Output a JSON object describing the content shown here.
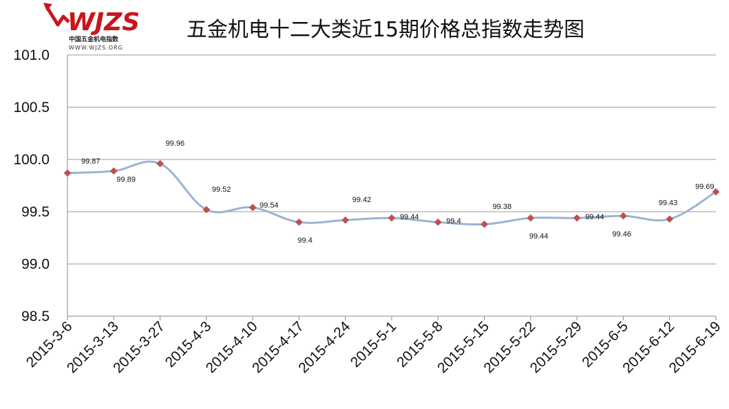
{
  "logo": {
    "brand": "WJZS",
    "cn_name": "中国五金机电指数",
    "url": "WWW.WJZS.ORG"
  },
  "chart_data": {
    "type": "line",
    "title": "五金机电十二大类近15期价格总指数走势图",
    "xlabel": "",
    "ylabel": "",
    "categories": [
      "2015-3-6",
      "2015-3-13",
      "2015-3-27",
      "2015-4-3",
      "2015-4-10",
      "2015-4-17",
      "2015-4-24",
      "2015-5-1",
      "2015-5-8",
      "2015-5-15",
      "2015-5-22",
      "2015-5-29",
      "2015-6-5",
      "2015-6-12",
      "2015-6-19"
    ],
    "series": [
      {
        "values": [
          99.87,
          99.89,
          99.96,
          99.52,
          99.54,
          99.4,
          99.42,
          99.44,
          99.4,
          99.38,
          99.44,
          99.44,
          99.46,
          99.43,
          99.69
        ],
        "data_labels": [
          "99.87",
          "99.89",
          "99.96",
          "99.52",
          "99.54",
          "99.4",
          "99.42",
          "99.44",
          "99.4",
          "99.38",
          "99.44",
          "99.44",
          "99.46",
          "99.43",
          "99.69"
        ]
      }
    ],
    "ylim": [
      98.5,
      101.0
    ],
    "yticks": [
      "98.5",
      "99.0",
      "99.5",
      "100.0",
      "100.5",
      "101.0"
    ],
    "grid": "horizontal",
    "line_color": "#9ab4d2",
    "marker_color": "#c0504d",
    "marker": "diamond"
  }
}
